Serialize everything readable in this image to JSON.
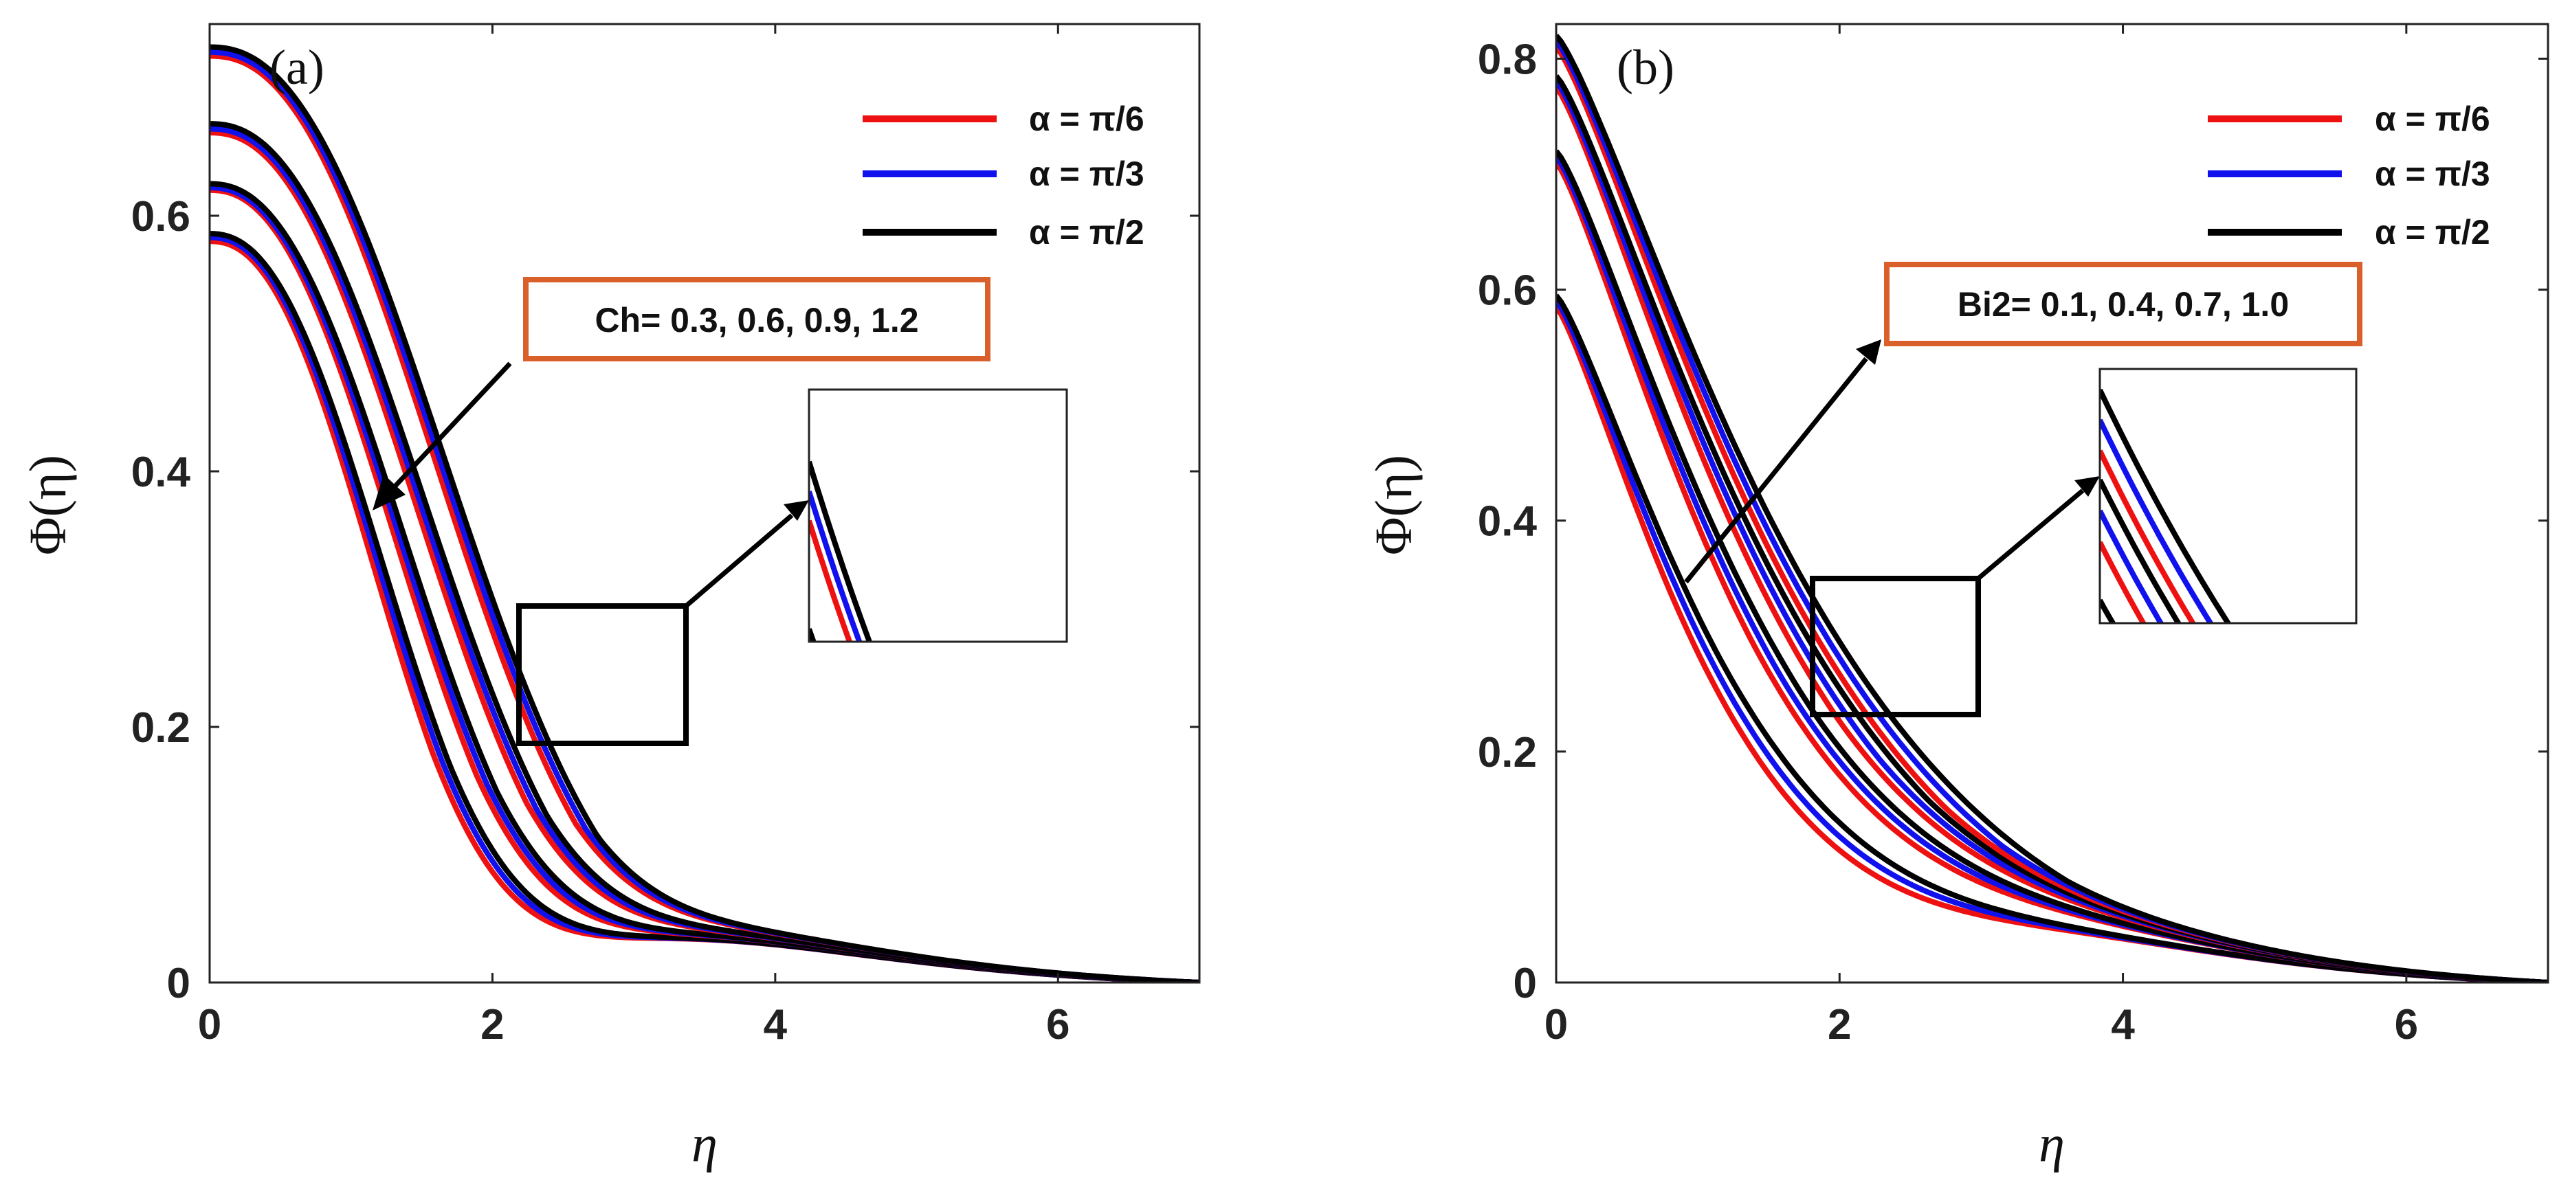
{
  "figure": {
    "panel_count": 2
  },
  "chart_data": [
    {
      "type": "line",
      "panel_label": "(a)",
      "title": "",
      "xlabel": "η",
      "ylabel": "Φ(η)",
      "xlim": [
        0,
        7
      ],
      "ylim": [
        0,
        0.75
      ],
      "xticks": [
        0,
        2,
        4,
        6
      ],
      "yticks": [
        0,
        0.2,
        0.4,
        0.6
      ],
      "xtick_labels": [
        "0",
        "2",
        "4",
        "6"
      ],
      "ytick_labels": [
        "0",
        "0.2",
        "0.4",
        "0.6"
      ],
      "legend": {
        "location": "top-right",
        "entries": [
          {
            "label": "α = π/6",
            "color": "#ee1111"
          },
          {
            "label": "α = π/3",
            "color": "#1111ee"
          },
          {
            "label": "α = π/2",
            "color": "#000000"
          }
        ]
      },
      "annotation": {
        "text": "Ch= 0.3, 0.6, 0.9, 1.2",
        "box_color": "#d95f2b",
        "arrow": "points toward lower curves"
      },
      "zoom_box": {
        "x_range": [
          2.15,
          3.35
        ],
        "y_range": [
          0.18,
          0.285
        ]
      },
      "shape": {
        "a": 2.3,
        "b": 0.55,
        "c": 0.25
      },
      "series": [
        {
          "name": "Ch=0.3, α=π/6",
          "color": "#ee1111",
          "phi0": 0.58,
          "s": 1.14
        },
        {
          "name": "Ch=0.3, α=π/3",
          "color": "#1111ee",
          "phi0": 0.583,
          "s": 1.17
        },
        {
          "name": "Ch=0.3, α=π/2",
          "color": "#000000",
          "phi0": 0.586,
          "s": 1.2
        },
        {
          "name": "Ch=0.6, α=π/6",
          "color": "#ee1111",
          "phi0": 0.62,
          "s": 1.29
        },
        {
          "name": "Ch=0.6, α=π/3",
          "color": "#1111ee",
          "phi0": 0.622,
          "s": 1.32
        },
        {
          "name": "Ch=0.6, α=π/2",
          "color": "#000000",
          "phi0": 0.625,
          "s": 1.35
        },
        {
          "name": "Ch=0.9, α=π/6",
          "color": "#ee1111",
          "phi0": 0.665,
          "s": 1.44
        },
        {
          "name": "Ch=0.9, α=π/3",
          "color": "#1111ee",
          "phi0": 0.668,
          "s": 1.47
        },
        {
          "name": "Ch=0.9, α=π/2",
          "color": "#000000",
          "phi0": 0.672,
          "s": 1.5
        },
        {
          "name": "Ch=1.2, α=π/6",
          "color": "#ee1111",
          "phi0": 0.725,
          "s": 1.58
        },
        {
          "name": "Ch=1.2, α=π/3",
          "color": "#1111ee",
          "phi0": 0.728,
          "s": 1.61
        },
        {
          "name": "Ch=1.2, α=π/2",
          "color": "#000000",
          "phi0": 0.732,
          "s": 1.64
        }
      ]
    },
    {
      "type": "line",
      "panel_label": "(b)",
      "title": "",
      "xlabel": "η",
      "ylabel": "Φ(η)",
      "xlim": [
        0,
        7
      ],
      "ylim": [
        0,
        0.83
      ],
      "xticks": [
        0,
        2,
        4,
        6
      ],
      "yticks": [
        0,
        0.2,
        0.4,
        0.6,
        0.8
      ],
      "xtick_labels": [
        "0",
        "2",
        "4",
        "6"
      ],
      "ytick_labels": [
        "0",
        "0.2",
        "0.4",
        "0.6",
        "0.8"
      ],
      "legend": {
        "location": "top-right",
        "entries": [
          {
            "label": "α = π/6",
            "color": "#ee1111"
          },
          {
            "label": "α = π/3",
            "color": "#1111ee"
          },
          {
            "label": "α = π/2",
            "color": "#000000"
          }
        ]
      },
      "annotation": {
        "text": "Bi2= 0.1, 0.4, 0.7, 1.0",
        "box_color": "#d95f2b",
        "arrow": "points toward upper curves"
      },
      "zoom_box": {
        "x_range": [
          1.78,
          2.95
        ],
        "y_range": [
          0.23,
          0.35
        ]
      },
      "shape": {
        "a": 1.25,
        "b": 0.9,
        "c": 0.1
      },
      "series": [
        {
          "name": "Bi2=0.1, α=π/6",
          "color": "#ee1111",
          "phi0": 0.585,
          "s": 1.2
        },
        {
          "name": "Bi2=0.1, α=π/3",
          "color": "#1111ee",
          "phi0": 0.59,
          "s": 1.27
        },
        {
          "name": "Bi2=0.1, α=π/2",
          "color": "#000000",
          "phi0": 0.595,
          "s": 1.34
        },
        {
          "name": "Bi2=0.4, α=π/6",
          "color": "#ee1111",
          "phi0": 0.71,
          "s": 1.42
        },
        {
          "name": "Bi2=0.4, α=π/3",
          "color": "#1111ee",
          "phi0": 0.715,
          "s": 1.48
        },
        {
          "name": "Bi2=0.4, α=π/2",
          "color": "#000000",
          "phi0": 0.72,
          "s": 1.54
        },
        {
          "name": "Bi2=0.7, α=π/6",
          "color": "#ee1111",
          "phi0": 0.775,
          "s": 1.58
        },
        {
          "name": "Bi2=0.7, α=π/3",
          "color": "#1111ee",
          "phi0": 0.78,
          "s": 1.64
        },
        {
          "name": "Bi2=0.7, α=π/2",
          "color": "#000000",
          "phi0": 0.785,
          "s": 1.7
        },
        {
          "name": "Bi2=1.0, α=π/6",
          "color": "#ee1111",
          "phi0": 0.81,
          "s": 1.72
        },
        {
          "name": "Bi2=1.0, α=π/3",
          "color": "#1111ee",
          "phi0": 0.815,
          "s": 1.78
        },
        {
          "name": "Bi2=1.0, α=π/2",
          "color": "#000000",
          "phi0": 0.82,
          "s": 1.84
        }
      ]
    }
  ]
}
